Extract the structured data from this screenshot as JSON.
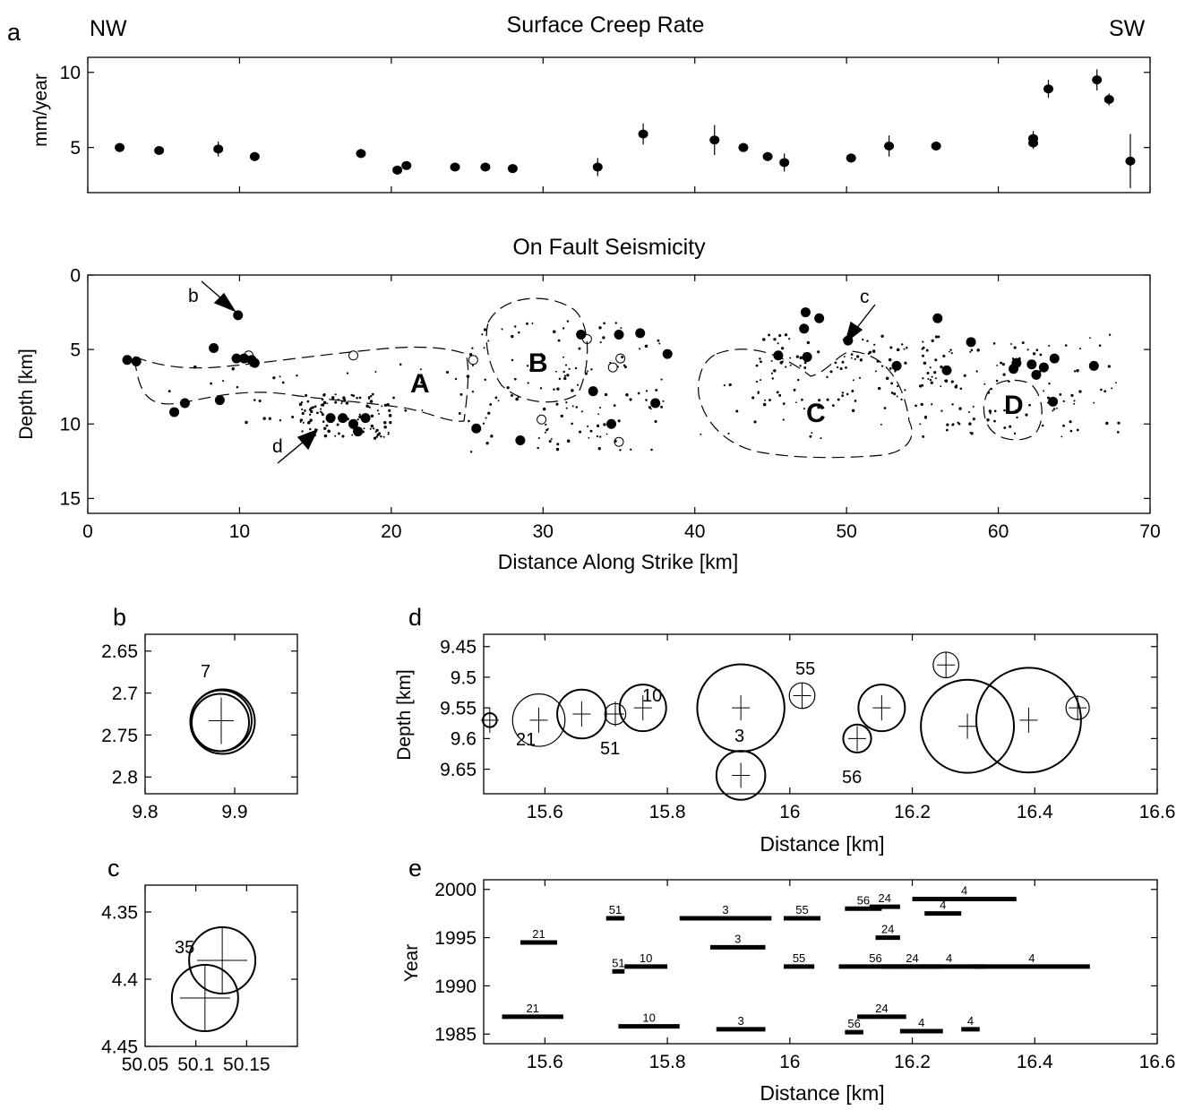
{
  "chart_data": [
    {
      "panel": "a",
      "type": "scatter",
      "title": "Surface Creep Rate",
      "left_label": "NW",
      "right_label": "SW",
      "ylabel": "mm/year",
      "xlim": [
        0,
        70
      ],
      "ylim": [
        2,
        11
      ],
      "yticks": [
        5,
        10
      ],
      "points": [
        {
          "x": 2.1,
          "y": 5.0,
          "err": 0.3
        },
        {
          "x": 4.7,
          "y": 4.8,
          "err": 0.2
        },
        {
          "x": 8.6,
          "y": 4.9,
          "err": 0.5
        },
        {
          "x": 11.0,
          "y": 4.4,
          "err": 0.3
        },
        {
          "x": 18.0,
          "y": 4.6,
          "err": 0.3
        },
        {
          "x": 20.4,
          "y": 3.5,
          "err": 0.3
        },
        {
          "x": 21.0,
          "y": 3.8,
          "err": 0.2
        },
        {
          "x": 24.2,
          "y": 3.7,
          "err": 0.2
        },
        {
          "x": 26.2,
          "y": 3.7,
          "err": 0.2
        },
        {
          "x": 28.0,
          "y": 3.6,
          "err": 0.2
        },
        {
          "x": 33.6,
          "y": 3.7,
          "err": 0.6
        },
        {
          "x": 36.6,
          "y": 5.9,
          "err": 0.7
        },
        {
          "x": 41.3,
          "y": 5.5,
          "err": 1.0
        },
        {
          "x": 43.2,
          "y": 5.0,
          "err": 0.3
        },
        {
          "x": 44.8,
          "y": 4.4,
          "err": 0.3
        },
        {
          "x": 45.9,
          "y": 4.0,
          "err": 0.6
        },
        {
          "x": 50.3,
          "y": 4.3,
          "err": 0.3
        },
        {
          "x": 52.8,
          "y": 5.1,
          "err": 0.7
        },
        {
          "x": 55.9,
          "y": 5.1,
          "err": 0.3
        },
        {
          "x": 62.3,
          "y": 5.6,
          "err": 0.5
        },
        {
          "x": 62.3,
          "y": 5.3,
          "err": 0.4
        },
        {
          "x": 63.3,
          "y": 8.9,
          "err": 0.6
        },
        {
          "x": 66.5,
          "y": 9.5,
          "err": 0.7
        },
        {
          "x": 67.3,
          "y": 8.2,
          "err": 0.4
        },
        {
          "x": 68.7,
          "y": 4.1,
          "err": 1.8
        }
      ]
    },
    {
      "panel": "",
      "type": "scatter",
      "title": "On Fault Seismicity",
      "xlabel": "Distance Along Strike [km]",
      "ylabel": "Depth [km]",
      "xlim": [
        0,
        70
      ],
      "ylim": [
        0,
        16
      ],
      "xticks": [
        0,
        10,
        20,
        30,
        40,
        50,
        60,
        70
      ],
      "yticks": [
        0,
        5,
        10,
        15
      ],
      "region_labels": [
        "A",
        "B",
        "C",
        "D"
      ],
      "annotations": [
        "b",
        "c",
        "d"
      ],
      "events": [
        {
          "x": 2.6,
          "y": 5.7,
          "m": 2
        },
        {
          "x": 3.2,
          "y": 5.8,
          "m": 2
        },
        {
          "x": 5.7,
          "y": 9.2,
          "m": 2
        },
        {
          "x": 6.4,
          "y": 8.6,
          "m": 2
        },
        {
          "x": 8.3,
          "y": 4.9,
          "m": 2
        },
        {
          "x": 8.7,
          "y": 8.4,
          "m": 2
        },
        {
          "x": 9.9,
          "y": 2.7,
          "m": 2
        },
        {
          "x": 9.8,
          "y": 5.6,
          "m": 2
        },
        {
          "x": 10.3,
          "y": 5.6,
          "m": 2
        },
        {
          "x": 10.8,
          "y": 5.7,
          "m": 2
        },
        {
          "x": 11.0,
          "y": 5.9,
          "m": 2
        },
        {
          "x": 16.0,
          "y": 9.6,
          "m": 2
        },
        {
          "x": 16.8,
          "y": 9.6,
          "m": 2
        },
        {
          "x": 17.5,
          "y": 10.0,
          "m": 2
        },
        {
          "x": 17.8,
          "y": 10.5,
          "m": 2
        },
        {
          "x": 18.3,
          "y": 9.6,
          "m": 2
        },
        {
          "x": 25.6,
          "y": 10.3,
          "m": 2
        },
        {
          "x": 28.5,
          "y": 11.1,
          "m": 2
        },
        {
          "x": 32.5,
          "y": 4.0,
          "m": 2
        },
        {
          "x": 33.3,
          "y": 7.8,
          "m": 2
        },
        {
          "x": 35.0,
          "y": 4.0,
          "m": 2
        },
        {
          "x": 36.4,
          "y": 3.9,
          "m": 2
        },
        {
          "x": 34.5,
          "y": 10.0,
          "m": 2
        },
        {
          "x": 37.4,
          "y": 8.6,
          "m": 2
        },
        {
          "x": 38.2,
          "y": 5.3,
          "m": 2
        },
        {
          "x": 45.5,
          "y": 5.4,
          "m": 2
        },
        {
          "x": 47.3,
          "y": 2.5,
          "m": 2
        },
        {
          "x": 48.2,
          "y": 2.9,
          "m": 2
        },
        {
          "x": 47.2,
          "y": 3.6,
          "m": 2
        },
        {
          "x": 47.4,
          "y": 5.5,
          "m": 2
        },
        {
          "x": 50.1,
          "y": 4.4,
          "m": 2
        },
        {
          "x": 53.3,
          "y": 6.1,
          "m": 2
        },
        {
          "x": 56.0,
          "y": 2.9,
          "m": 2
        },
        {
          "x": 56.6,
          "y": 6.4,
          "m": 2
        },
        {
          "x": 58.2,
          "y": 4.5,
          "m": 2
        },
        {
          "x": 61.2,
          "y": 5.9,
          "m": 2
        },
        {
          "x": 61.0,
          "y": 6.3,
          "m": 2
        },
        {
          "x": 62.2,
          "y": 6.0,
          "m": 2
        },
        {
          "x": 62.5,
          "y": 6.7,
          "m": 2
        },
        {
          "x": 63.0,
          "y": 6.2,
          "m": 2
        },
        {
          "x": 63.7,
          "y": 5.6,
          "m": 2
        },
        {
          "x": 63.6,
          "y": 8.5,
          "m": 2
        },
        {
          "x": 66.3,
          "y": 6.1,
          "m": 2
        },
        {
          "x": 10.6,
          "y": 5.4,
          "m": 1
        },
        {
          "x": 25.4,
          "y": 5.7,
          "m": 1
        },
        {
          "x": 29.9,
          "y": 9.7,
          "m": 1
        },
        {
          "x": 35.1,
          "y": 5.6,
          "m": 1
        },
        {
          "x": 35.0,
          "y": 11.2,
          "m": 1
        },
        {
          "x": 32.9,
          "y": 4.3,
          "m": 1
        },
        {
          "x": 34.6,
          "y": 6.2,
          "m": 1
        },
        {
          "x": 17.5,
          "y": 5.4,
          "m": 1
        }
      ]
    },
    {
      "panel": "b",
      "type": "scatter",
      "xlim": [
        9.8,
        9.97
      ],
      "ylim": [
        2.82,
        2.63
      ],
      "xticks": [
        9.8,
        9.9
      ],
      "yticks": [
        2.65,
        2.7,
        2.75,
        2.8
      ],
      "event_labels": [
        "7"
      ],
      "events": [
        {
          "x": 9.885,
          "y": 2.733
        }
      ]
    },
    {
      "panel": "c",
      "type": "scatter",
      "xlim": [
        50.05,
        50.2
      ],
      "ylim": [
        4.45,
        4.33
      ],
      "xticks": [
        50.05,
        50.1,
        50.15
      ],
      "yticks": [
        4.35,
        4.4,
        4.45
      ],
      "event_labels": [
        "35"
      ],
      "events": [
        {
          "x": 50.126,
          "y": 4.386
        },
        {
          "x": 50.109,
          "y": 4.414
        }
      ]
    },
    {
      "panel": "d",
      "type": "scatter",
      "xlabel": "Distance [km]",
      "ylabel": "Depth [km]",
      "xlim": [
        15.5,
        16.6
      ],
      "ylim": [
        9.69,
        9.43
      ],
      "xticks": [
        15.6,
        15.8,
        16.0,
        16.2,
        16.4,
        16.6
      ],
      "xtick_labels": [
        "15.6",
        "15.8",
        "16",
        "16.2",
        "16.4",
        "16.6"
      ],
      "yticks": [
        9.45,
        9.5,
        9.55,
        9.6,
        9.65
      ],
      "event_labels": [
        "55",
        "10",
        "21",
        "51",
        "3",
        "56"
      ],
      "events": [
        {
          "x": 15.59,
          "y": 9.57,
          "r": 0.045
        },
        {
          "x": 15.66,
          "y": 9.56,
          "r": 0.042
        },
        {
          "x": 15.76,
          "y": 9.55,
          "r": 0.04
        },
        {
          "x": 15.715,
          "y": 9.56,
          "r": 0.018
        },
        {
          "x": 15.92,
          "y": 9.55,
          "r": 0.075
        },
        {
          "x": 15.92,
          "y": 9.66,
          "r": 0.042
        },
        {
          "x": 16.02,
          "y": 9.53,
          "r": 0.022
        },
        {
          "x": 16.11,
          "y": 9.6,
          "r": 0.024
        },
        {
          "x": 16.15,
          "y": 9.55,
          "r": 0.04
        },
        {
          "x": 16.255,
          "y": 9.48,
          "r": 0.022
        },
        {
          "x": 16.29,
          "y": 9.58,
          "r": 0.08
        },
        {
          "x": 16.39,
          "y": 9.57,
          "r": 0.09
        },
        {
          "x": 16.47,
          "y": 9.55,
          "r": 0.02
        },
        {
          "x": 15.51,
          "y": 9.57,
          "r": 0.012
        }
      ]
    },
    {
      "panel": "e",
      "type": "bar",
      "xlabel": "Distance [km]",
      "ylabel": "Year",
      "xlim": [
        15.5,
        16.6
      ],
      "ylim": [
        1984,
        2001
      ],
      "xticks": [
        15.6,
        15.8,
        16.0,
        16.2,
        16.4,
        16.6
      ],
      "xtick_labels": [
        "15.6",
        "15.8",
        "16",
        "16.2",
        "16.4",
        "16.6"
      ],
      "yticks": [
        1985,
        1990,
        1995,
        2000
      ],
      "segments": [
        {
          "x0": 15.53,
          "x1": 15.63,
          "y": 1986.8,
          "label": "21"
        },
        {
          "x0": 15.56,
          "x1": 15.62,
          "y": 1994.5,
          "label": "21"
        },
        {
          "x0": 15.7,
          "x1": 15.73,
          "y": 1997.0,
          "label": "51"
        },
        {
          "x0": 15.71,
          "x1": 15.73,
          "y": 1991.5,
          "label": "51"
        },
        {
          "x0": 15.73,
          "x1": 15.8,
          "y": 1992.0,
          "label": "10"
        },
        {
          "x0": 15.72,
          "x1": 15.82,
          "y": 1985.8,
          "label": "10"
        },
        {
          "x0": 15.82,
          "x1": 15.97,
          "y": 1997.0,
          "label": "3"
        },
        {
          "x0": 15.87,
          "x1": 15.96,
          "y": 1994.0,
          "label": "3"
        },
        {
          "x0": 15.88,
          "x1": 15.96,
          "y": 1985.5,
          "label": "3"
        },
        {
          "x0": 15.99,
          "x1": 16.05,
          "y": 1997.0,
          "label": "55"
        },
        {
          "x0": 15.99,
          "x1": 16.04,
          "y": 1992.0,
          "label": "55"
        },
        {
          "x0": 16.09,
          "x1": 16.15,
          "y": 1998.0,
          "label": "56"
        },
        {
          "x0": 16.08,
          "x1": 16.2,
          "y": 1992.0,
          "label": "56"
        },
        {
          "x0": 16.09,
          "x1": 16.12,
          "y": 1985.2,
          "label": "56"
        },
        {
          "x0": 16.13,
          "x1": 16.18,
          "y": 1998.2,
          "label": "24"
        },
        {
          "x0": 16.14,
          "x1": 16.18,
          "y": 1995.0,
          "label": "24"
        },
        {
          "x0": 16.15,
          "x1": 16.25,
          "y": 1992.0,
          "label": "24"
        },
        {
          "x0": 16.11,
          "x1": 16.19,
          "y": 1986.8,
          "label": "24"
        },
        {
          "x0": 16.2,
          "x1": 16.37,
          "y": 1999.0,
          "label": "4"
        },
        {
          "x0": 16.22,
          "x1": 16.28,
          "y": 1997.5,
          "label": "4"
        },
        {
          "x0": 16.2,
          "x1": 16.32,
          "y": 1992.0,
          "label": "4"
        },
        {
          "x0": 16.3,
          "x1": 16.49,
          "y": 1992.0,
          "label": "4"
        },
        {
          "x0": 16.18,
          "x1": 16.25,
          "y": 1985.3,
          "label": "4"
        },
        {
          "x0": 16.28,
          "x1": 16.31,
          "y": 1985.5,
          "label": "4"
        }
      ]
    }
  ]
}
